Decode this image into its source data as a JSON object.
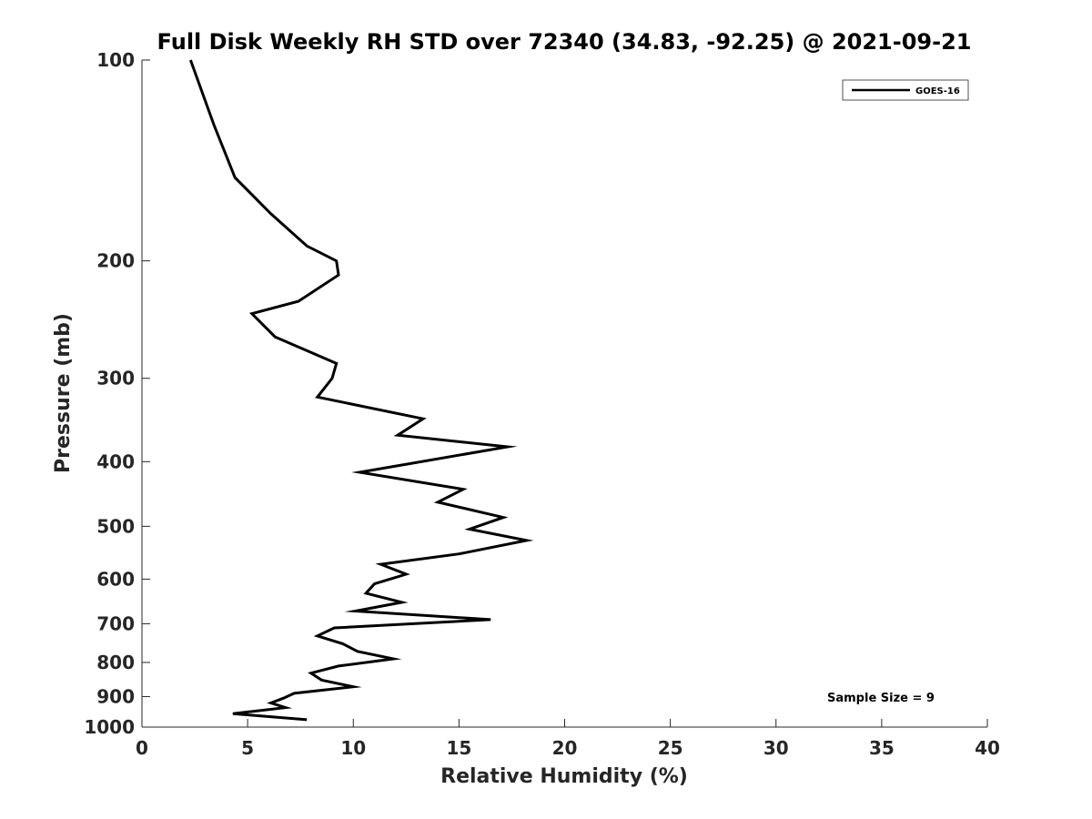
{
  "chart_data": {
    "type": "line",
    "title": "Full Disk Weekly RH STD over 72340 (34.83, -92.25) @ 2021-09-21",
    "xlabel": "Relative Humidity (%)",
    "ylabel": "Pressure (mb)",
    "xlim": [
      0,
      40
    ],
    "ylim": [
      100,
      1000
    ],
    "y_scale": "log",
    "y_inverted": true,
    "x_ticks": [
      0,
      5,
      10,
      15,
      20,
      25,
      30,
      35,
      40
    ],
    "x_tick_labels": [
      "0",
      "5",
      "10",
      "15",
      "20",
      "25",
      "30",
      "35",
      "40"
    ],
    "y_ticks": [
      100,
      200,
      300,
      400,
      500,
      600,
      700,
      800,
      900,
      1000
    ],
    "y_tick_labels": [
      "100",
      "200",
      "300",
      "400",
      "500",
      "600",
      "700",
      "800",
      "900",
      "1000"
    ],
    "grid": false,
    "legend": {
      "position": "top-right",
      "entries": [
        "GOES-16"
      ]
    },
    "annotation": "Sample Size = 9",
    "series": [
      {
        "name": "GOES-16",
        "color": "#000000",
        "points": [
          [
            2.3,
            100
          ],
          [
            3.4,
            125
          ],
          [
            4.4,
            150
          ],
          [
            6.1,
            170
          ],
          [
            7.8,
            190
          ],
          [
            9.2,
            200
          ],
          [
            9.3,
            210
          ],
          [
            7.4,
            230
          ],
          [
            5.2,
            240
          ],
          [
            6.3,
            260
          ],
          [
            9.2,
            285
          ],
          [
            9.0,
            300
          ],
          [
            8.3,
            320
          ],
          [
            13.3,
            345
          ],
          [
            12.1,
            365
          ],
          [
            17.3,
            380
          ],
          [
            10.3,
            415
          ],
          [
            15.2,
            440
          ],
          [
            14.0,
            460
          ],
          [
            17.1,
            485
          ],
          [
            15.5,
            505
          ],
          [
            18.2,
            525
          ],
          [
            15.0,
            550
          ],
          [
            11.3,
            570
          ],
          [
            12.5,
            590
          ],
          [
            11.0,
            610
          ],
          [
            10.6,
            630
          ],
          [
            12.3,
            650
          ],
          [
            10.1,
            670
          ],
          [
            16.5,
            690
          ],
          [
            9.1,
            710
          ],
          [
            8.3,
            730
          ],
          [
            9.5,
            750
          ],
          [
            10.2,
            770
          ],
          [
            11.9,
            790
          ],
          [
            9.3,
            810
          ],
          [
            8.0,
            830
          ],
          [
            8.5,
            850
          ],
          [
            10.0,
            870
          ],
          [
            7.2,
            890
          ],
          [
            6.7,
            905
          ],
          [
            6.1,
            920
          ],
          [
            6.8,
            935
          ],
          [
            4.3,
            955
          ],
          [
            7.8,
            975
          ]
        ]
      }
    ]
  }
}
